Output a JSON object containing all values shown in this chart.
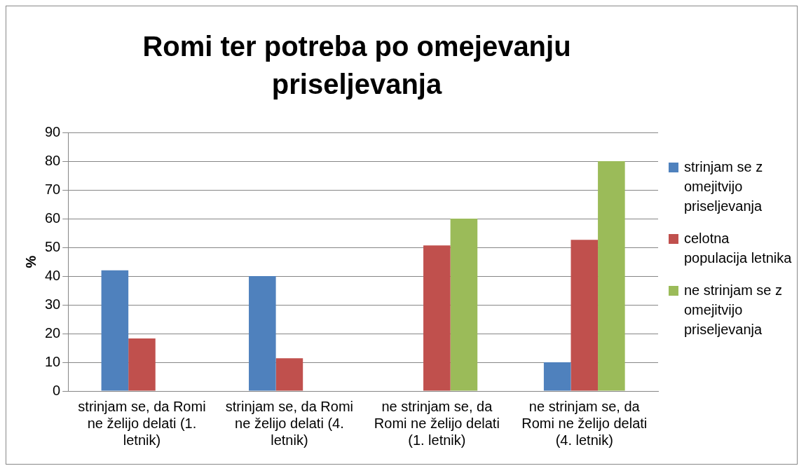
{
  "chart_data": {
    "type": "bar",
    "title": "Romi ter potreba po omejevanju priseljevanja",
    "ylabel": "%",
    "categories": [
      "strinjam se, da Romi ne želijo delati (1. letnik)",
      "strinjam se, da Romi ne želijo delati (4. letnik)",
      "ne strinjam se, da Romi ne želijo delati (1. letnik)",
      "ne strinjam se, da Romi ne želijo delati (4. letnik)"
    ],
    "series": [
      {
        "name": "strinjam se z omejitvijo priseljevanja",
        "color": "#4f81bd",
        "values": [
          42,
          40,
          0,
          10
        ]
      },
      {
        "name": "celotna populacija letnika",
        "color": "#c0504d",
        "values": [
          18.3,
          11.4,
          50.7,
          52.6
        ]
      },
      {
        "name": "ne strinjam se z omejitvijo priseljevanja",
        "color": "#9bbb59",
        "values": [
          0,
          0,
          60,
          80
        ]
      }
    ],
    "ylim": [
      0,
      90
    ],
    "yticks": [
      0,
      10,
      20,
      30,
      40,
      50,
      60,
      70,
      80,
      90
    ],
    "grid": "y",
    "legend": "right"
  }
}
